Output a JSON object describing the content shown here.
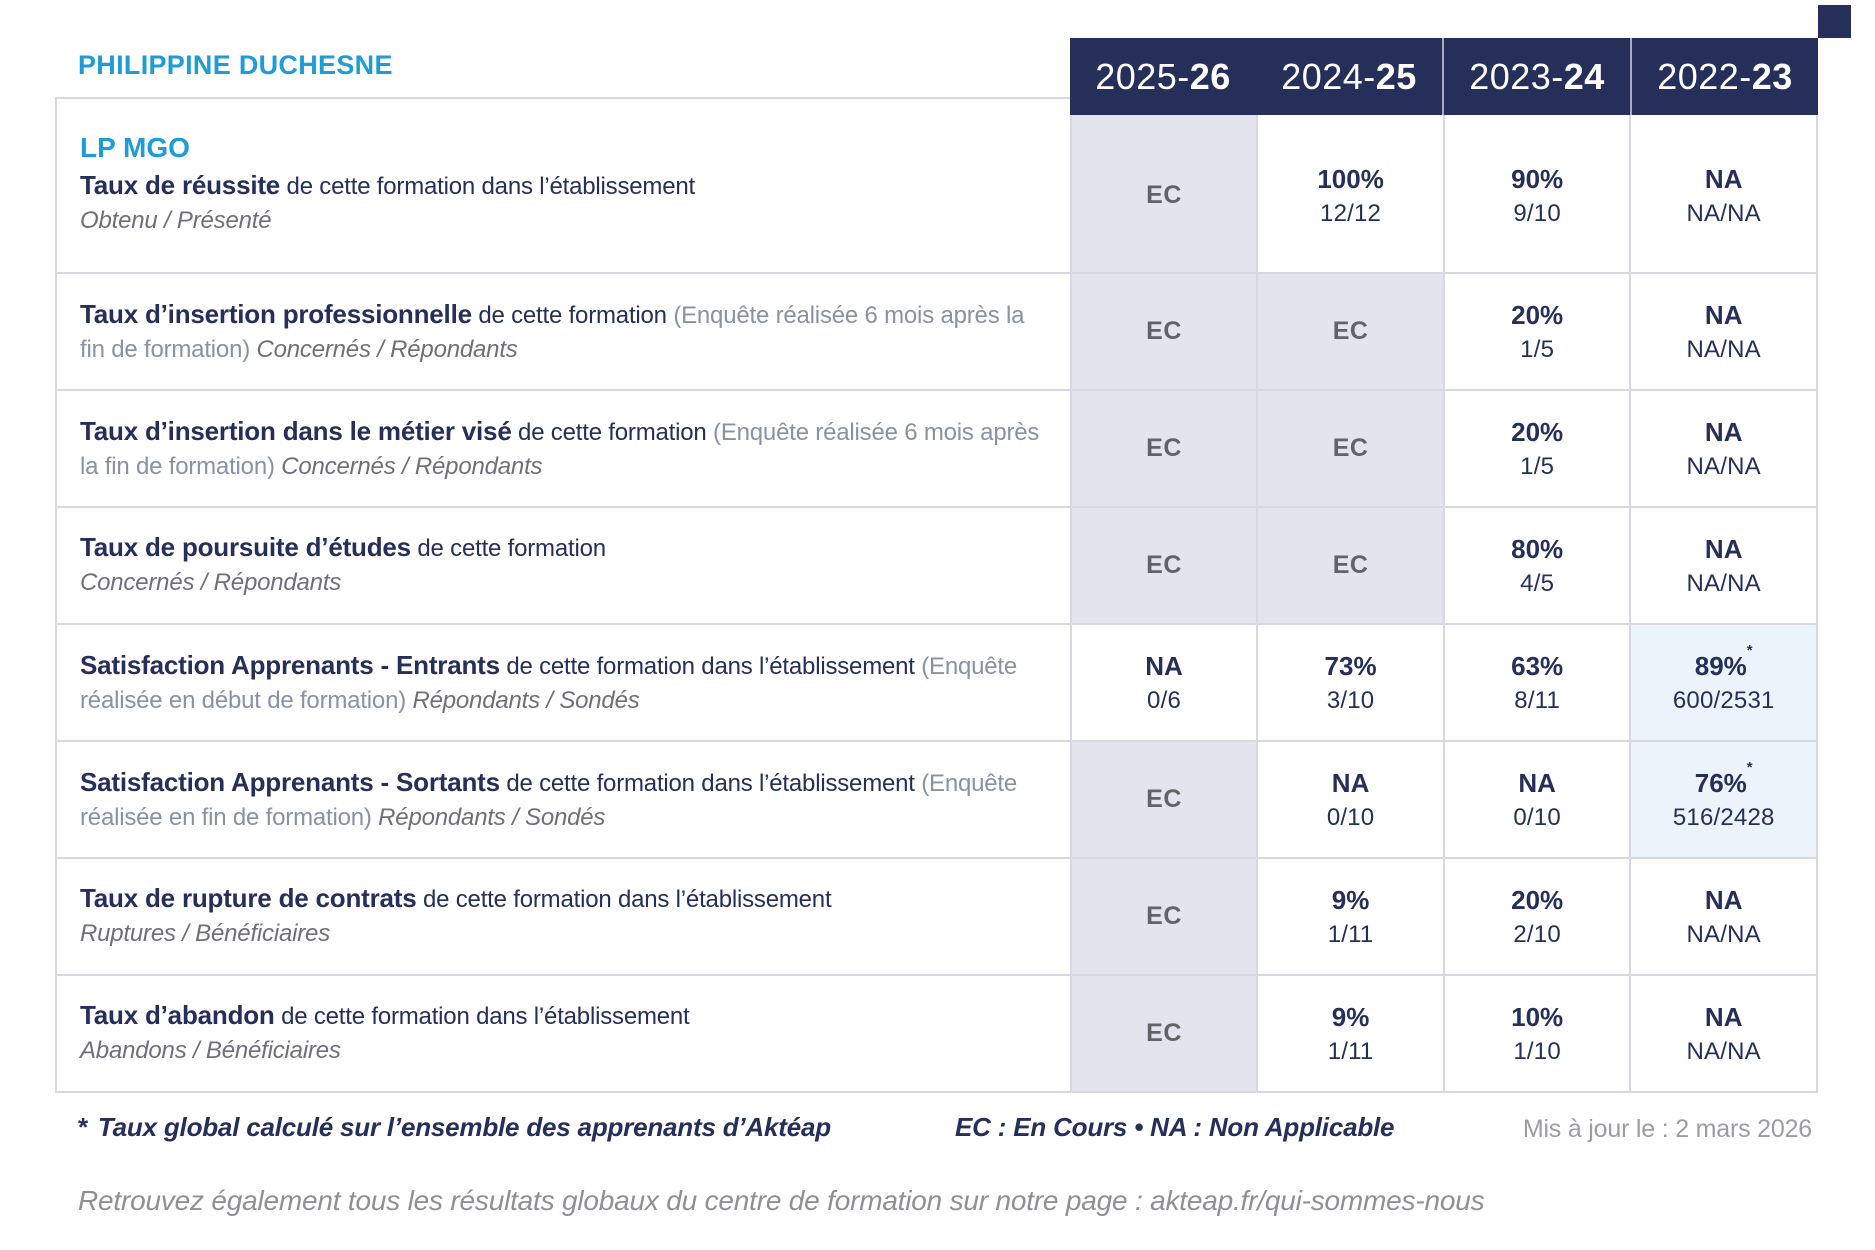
{
  "page": {
    "school_name": "PHILIPPINE DUCHESNE",
    "program": "LP MGO"
  },
  "colors": {
    "accent_cyan": "#1E9CD8",
    "navy": "#252F5A",
    "ec_cell_bg": "#E4E4EE",
    "highlight_cell_bg": "#EBF4FA",
    "ec_text": "#636367",
    "note_gray_blue": "#8C90A6",
    "sub_gray": "#6F6F7B",
    "border_gray": "#D8D8E2"
  },
  "years": [
    {
      "prefix": "2025-",
      "suffix": "26"
    },
    {
      "prefix": "2024-",
      "suffix": "25"
    },
    {
      "prefix": "2023-",
      "suffix": "24"
    },
    {
      "prefix": "2022-",
      "suffix": "23"
    }
  ],
  "rows": [
    {
      "program": "LP MGO",
      "title": "Taux de réussite",
      "desc": "de cette formation dans l’établissement",
      "note": "",
      "sub": "Obtenu / Présenté",
      "sub_block": true,
      "values": [
        {
          "text": "EC",
          "type": "ec"
        },
        {
          "text": "100%",
          "frac": "12/12",
          "type": "val"
        },
        {
          "text": "90%",
          "frac": "9/10",
          "type": "val"
        },
        {
          "text": "NA",
          "frac": "NA/NA",
          "type": "val"
        }
      ]
    },
    {
      "title": "Taux d’insertion professionnelle",
      "desc": "de cette formation",
      "note": "(Enquête réalisée 6 mois après la fin de formation)",
      "sub": "Concernés / Répondants",
      "sub_block": false,
      "values": [
        {
          "text": "EC",
          "type": "ec"
        },
        {
          "text": "EC",
          "type": "ec"
        },
        {
          "text": "20%",
          "frac": "1/5",
          "type": "val"
        },
        {
          "text": "NA",
          "frac": "NA/NA",
          "type": "val"
        }
      ]
    },
    {
      "title": "Taux d’insertion dans le métier visé",
      "desc": "de cette formation",
      "note": "(Enquête réalisée 6 mois après la fin de formation)",
      "sub": "Concernés / Répondants",
      "sub_block": false,
      "values": [
        {
          "text": "EC",
          "type": "ec"
        },
        {
          "text": "EC",
          "type": "ec"
        },
        {
          "text": "20%",
          "frac": "1/5",
          "type": "val"
        },
        {
          "text": "NA",
          "frac": "NA/NA",
          "type": "val"
        }
      ]
    },
    {
      "title": "Taux de poursuite d’études",
      "desc": "de cette formation",
      "note": "",
      "sub": "Concernés / Répondants",
      "sub_block": true,
      "values": [
        {
          "text": "EC",
          "type": "ec"
        },
        {
          "text": "EC",
          "type": "ec"
        },
        {
          "text": "80%",
          "frac": "4/5",
          "type": "val"
        },
        {
          "text": "NA",
          "frac": "NA/NA",
          "type": "val"
        }
      ]
    },
    {
      "title": "Satisfaction Apprenants - Entrants",
      "desc": "de cette formation dans l’établissement",
      "note": "(Enquête réalisée en début de formation)",
      "sub": "Répondants / Sondés",
      "sub_block": false,
      "values": [
        {
          "text": "NA",
          "frac": "0/6",
          "type": "val"
        },
        {
          "text": "73%",
          "frac": "3/10",
          "type": "val"
        },
        {
          "text": "63%",
          "frac": "8/11",
          "type": "val"
        },
        {
          "text": "89%",
          "frac": "600/2531",
          "star": "*",
          "type": "highlight"
        }
      ]
    },
    {
      "title": "Satisfaction Apprenants - Sortants",
      "desc": "de cette formation dans l’établissement",
      "note": "(Enquête réalisée en fin de formation)",
      "sub": "Répondants / Sondés",
      "sub_block": false,
      "values": [
        {
          "text": "EC",
          "type": "ec"
        },
        {
          "text": "NA",
          "frac": "0/10",
          "type": "val"
        },
        {
          "text": "NA",
          "frac": "0/10",
          "type": "val"
        },
        {
          "text": "76%",
          "frac": "516/2428",
          "star": "*",
          "type": "highlight"
        }
      ]
    },
    {
      "title": "Taux de rupture de contrats",
      "desc": "de cette formation dans l’établissement",
      "note": "",
      "sub": "Ruptures / Bénéficiaires",
      "sub_block": true,
      "values": [
        {
          "text": "EC",
          "type": "ec"
        },
        {
          "text": "9%",
          "frac": "1/11",
          "type": "val"
        },
        {
          "text": "20%",
          "frac": "2/10",
          "type": "val"
        },
        {
          "text": "NA",
          "frac": "NA/NA",
          "type": "val"
        }
      ]
    },
    {
      "title": "Taux d’abandon",
      "desc": "de cette formation dans l’établissement",
      "note": "",
      "sub": "Abandons / Bénéficiaires",
      "sub_block": true,
      "values": [
        {
          "text": "EC",
          "type": "ec"
        },
        {
          "text": "9%",
          "frac": "1/11",
          "type": "val"
        },
        {
          "text": "10%",
          "frac": "1/10",
          "type": "val"
        },
        {
          "text": "NA",
          "frac": "NA/NA",
          "type": "val"
        }
      ]
    }
  ],
  "footer": {
    "asterisk": "*",
    "note": "Taux global calculé sur l’ensemble des apprenants d’Aktéap",
    "legend": "EC : En Cours   •   NA : Non Applicable",
    "updated": "Mis à jour le : 2 mars 2026",
    "link_line": "Retrouvez également tous les résultats globaux du centre de formation sur notre page : akteap.fr/qui-sommes-nous"
  }
}
